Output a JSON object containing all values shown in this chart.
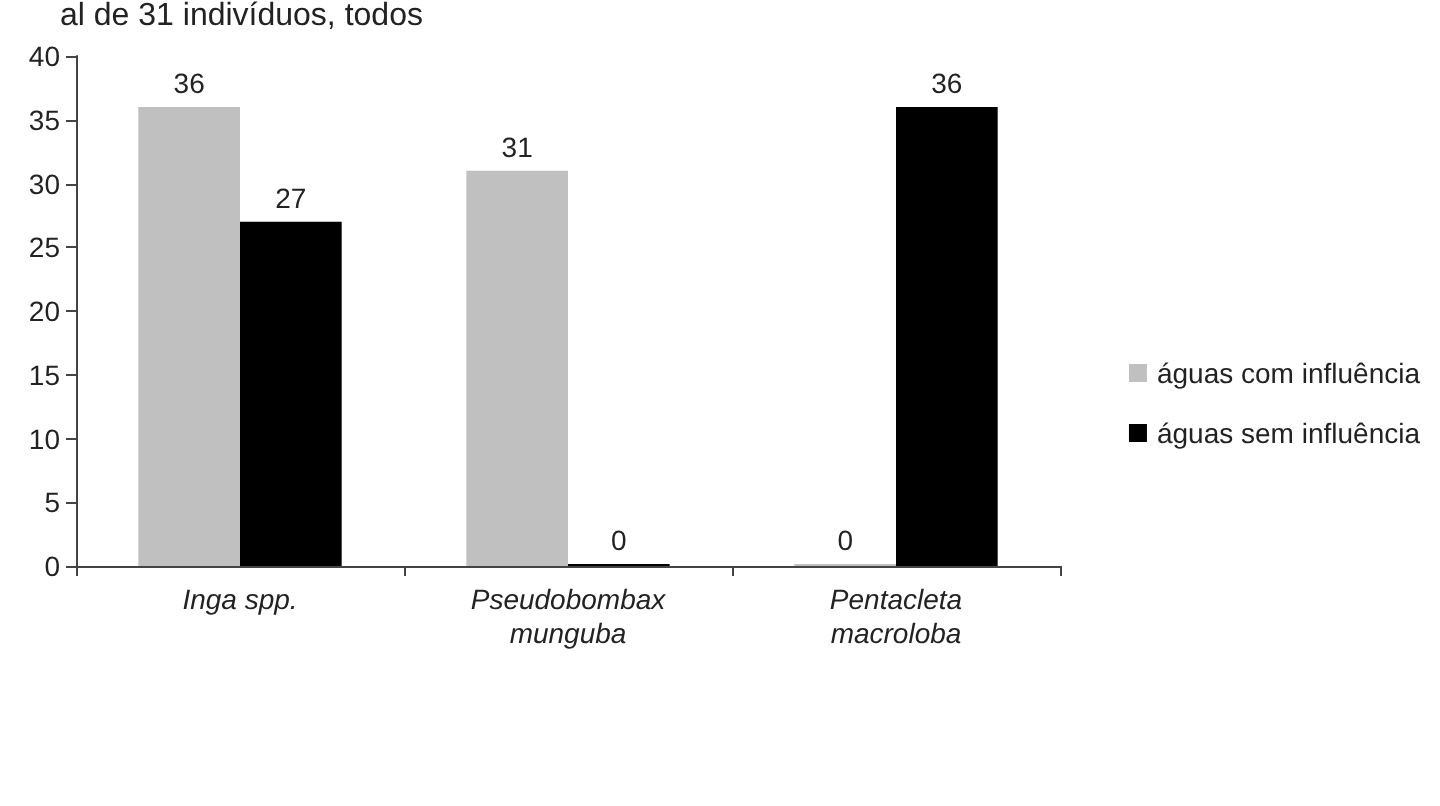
{
  "chart_data": {
    "type": "bar",
    "annotations": [
      "al de 31 indivíduos, todos"
    ],
    "categories": [
      "Inga spp.",
      "Pseudobombax\nmunguba",
      "Pentacleta\nmacroloba"
    ],
    "series": [
      {
        "name": "águas com influência",
        "color": "#c0c0c0",
        "values": [
          36,
          31,
          0
        ]
      },
      {
        "name": "águas sem influência",
        "color": "#000000",
        "values": [
          27,
          0,
          36
        ]
      }
    ],
    "ylim": [
      0,
      40
    ],
    "yticks": [
      0,
      5,
      10,
      15,
      20,
      25,
      30,
      35,
      40
    ],
    "grid": false,
    "legend": "right",
    "data_labels": true
  }
}
